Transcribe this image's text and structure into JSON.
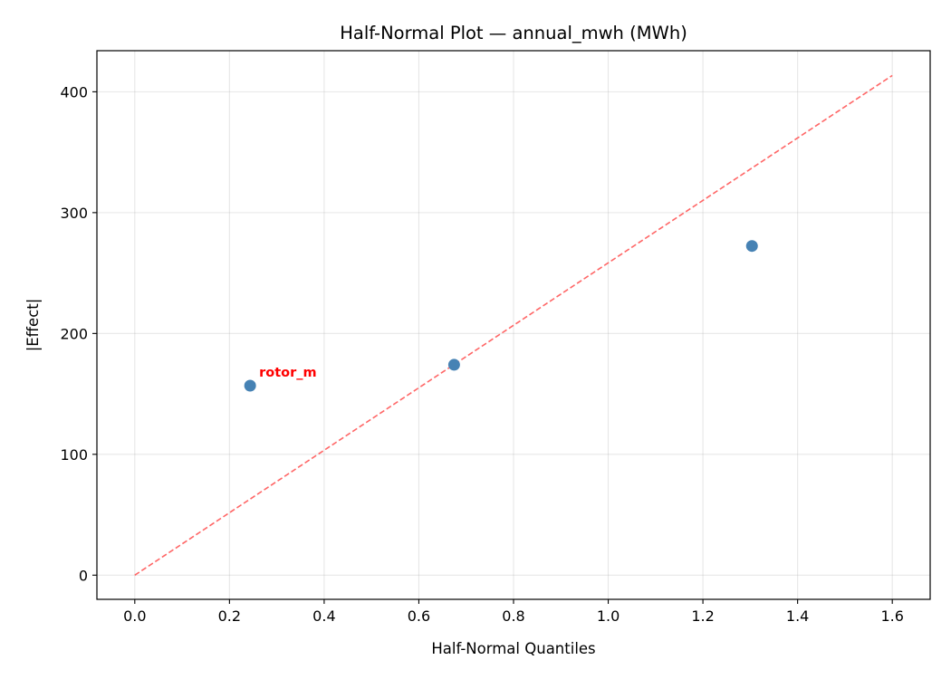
{
  "chart_data": {
    "type": "scatter",
    "title": "Half-Normal Plot — annual_mwh (MWh)",
    "xlabel": "Half-Normal Quantiles",
    "ylabel": "|Effect|",
    "xlim": [
      -0.08,
      1.68
    ],
    "ylim": [
      -20,
      434
    ],
    "xticks": [
      0.0,
      0.2,
      0.4,
      0.6,
      0.8,
      1.0,
      1.2,
      1.4,
      1.6
    ],
    "xtick_labels": [
      "0.0",
      "0.2",
      "0.4",
      "0.6",
      "0.8",
      "1.0",
      "1.2",
      "1.4",
      "1.6"
    ],
    "yticks": [
      0,
      100,
      200,
      300,
      400
    ],
    "ytick_labels": [
      "0",
      "100",
      "200",
      "300",
      "400"
    ],
    "grid": true,
    "points": [
      {
        "x": 0.2436,
        "y": 156.8,
        "label": "rotor_m"
      },
      {
        "x": 0.6745,
        "y": 174.1
      },
      {
        "x": 1.3036,
        "y": 272.4
      }
    ],
    "reference_line": {
      "x": [
        0,
        1.6
      ],
      "y": [
        0,
        413.5
      ],
      "style": "dashed"
    },
    "colors": {
      "points": "#4682b4",
      "reference_line": "#ff6666",
      "annotation": "#ff0000"
    }
  }
}
